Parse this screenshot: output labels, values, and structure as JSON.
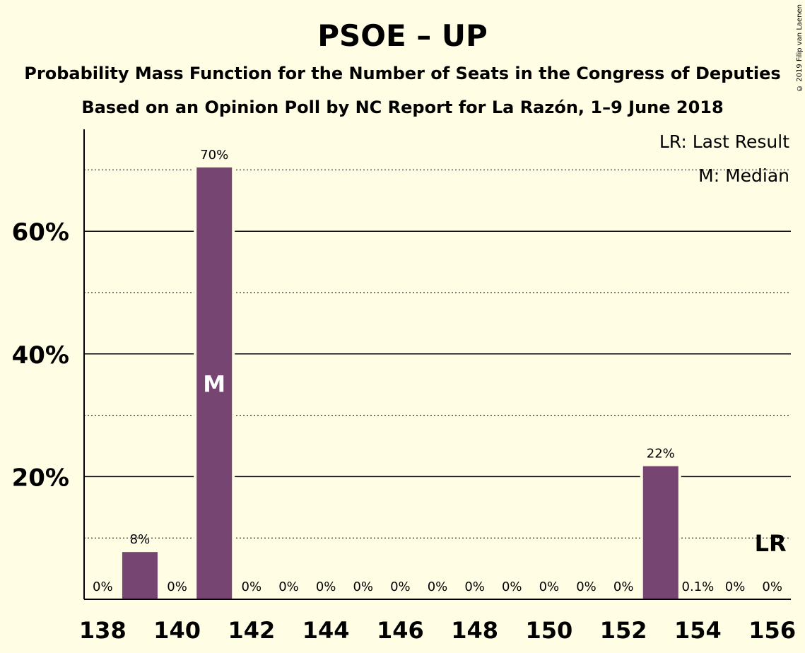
{
  "title": "PSOE – UP",
  "subtitle1": "Probability Mass Function for the Number of Seats in the Congress of Deputies",
  "subtitle2": "Based on an Opinion Poll by NC Report for La Razón, 1–9 June 2018",
  "copyright": "© 2019 Filip van Laenen",
  "legend": {
    "last_result": "LR: Last Result",
    "median": "M: Median"
  },
  "colors": {
    "bar": "#764571",
    "background": "#fffde4"
  },
  "chart_data": {
    "type": "bar",
    "title": "PSOE – UP",
    "x": [
      138,
      139,
      140,
      141,
      142,
      143,
      144,
      145,
      146,
      147,
      148,
      149,
      150,
      151,
      152,
      153,
      154,
      155,
      156
    ],
    "values": [
      0,
      7.7,
      0,
      70.4,
      0,
      0,
      0,
      0,
      0,
      0,
      0,
      0,
      0,
      0,
      0,
      21.7,
      0.1,
      0,
      0
    ],
    "data_labels": [
      "0%",
      "8%",
      "0%",
      "70%",
      "0%",
      "0%",
      "0%",
      "0%",
      "0%",
      "0%",
      "0%",
      "0%",
      "0%",
      "0%",
      "0%",
      "22%",
      "0.1%",
      "0%",
      "0%"
    ],
    "x_ticks": [
      "138",
      "140",
      "142",
      "144",
      "146",
      "148",
      "150",
      "152",
      "154",
      "156"
    ],
    "y_ticks": [
      "20%",
      "40%",
      "60%"
    ],
    "ylim": [
      0,
      77
    ],
    "median_seat": 141,
    "median_label": "M",
    "last_result_seat": 156,
    "last_result_label": "LR",
    "grid": true,
    "legend_position": "top-right"
  }
}
